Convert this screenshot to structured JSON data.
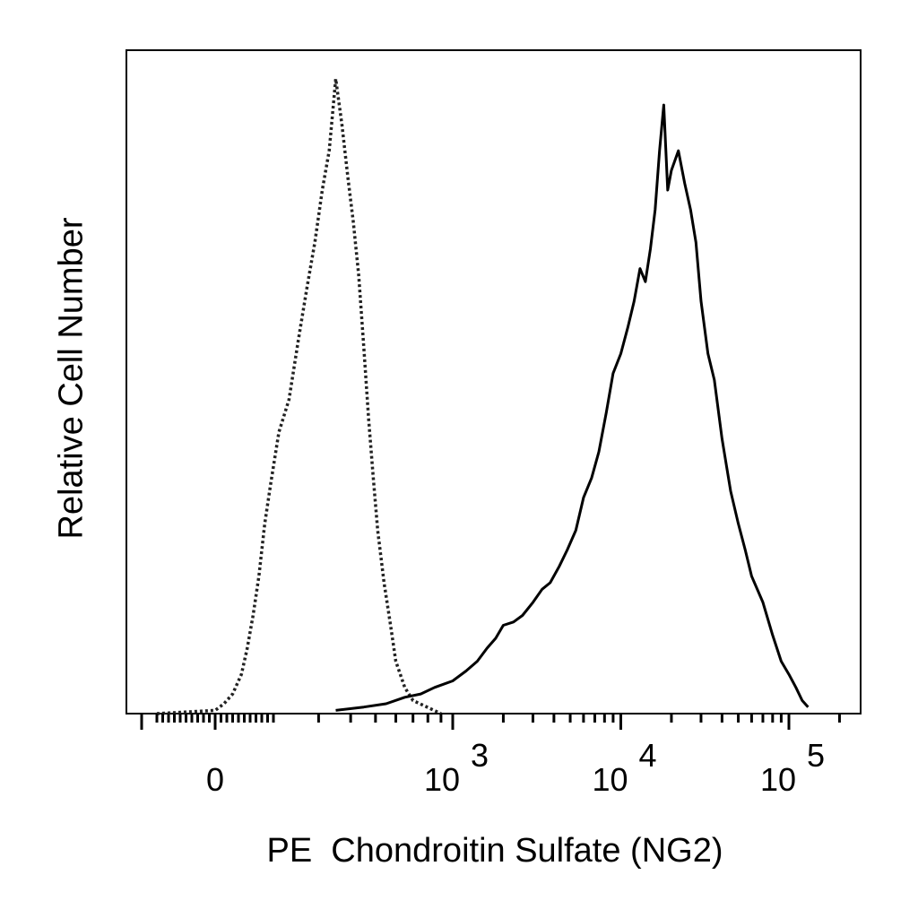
{
  "chart_data": {
    "type": "line",
    "title": "",
    "xlabel": "PE  Chondroitin Sulfate (NG2)",
    "ylabel": "Relative Cell Number",
    "x_scale": "biexponential",
    "x_ticks": [
      {
        "value": 0,
        "label": "0"
      },
      {
        "value": 1000,
        "label": "10",
        "exp": "3"
      },
      {
        "value": 10000,
        "label": "10",
        "exp": "4"
      },
      {
        "value": 100000,
        "label": "10",
        "exp": "5"
      }
    ],
    "xlim": [
      -200,
      150000
    ],
    "ylim": [
      0,
      100
    ],
    "grid": false,
    "legend": "none",
    "series": [
      {
        "style": "dotted",
        "color": "#222222",
        "x": [
          -200,
          0,
          30,
          60,
          90,
          110,
          130,
          150,
          170,
          190,
          210,
          230,
          250,
          270,
          290,
          310,
          330,
          350,
          370,
          390,
          410,
          430,
          450,
          470,
          490,
          510,
          540,
          570,
          600,
          650,
          700,
          900
        ],
        "y": [
          0,
          0.5,
          1.5,
          3,
          6,
          10,
          15,
          21,
          29,
          35,
          43,
          48,
          57,
          65,
          72,
          80,
          86,
          97,
          90,
          82,
          75,
          67,
          56,
          45,
          36,
          28,
          20,
          14,
          8,
          4,
          2,
          0
        ]
      },
      {
        "style": "solid",
        "color": "#000000",
        "x": [
          350,
          450,
          550,
          650,
          750,
          850,
          1000,
          1200,
          1400,
          1600,
          1800,
          2000,
          2300,
          2600,
          3000,
          3400,
          3800,
          4300,
          4800,
          5400,
          6000,
          6700,
          7400,
          8200,
          9000,
          10000,
          11000,
          12000,
          13000,
          14000,
          15000,
          16000,
          17000,
          18000,
          19000,
          20000,
          22000,
          24000,
          26000,
          28000,
          30000,
          33000,
          36000,
          40000,
          45000,
          50000,
          55000,
          60000,
          70000,
          80000,
          90000,
          100000,
          110000,
          120000,
          130000
        ],
        "y": [
          0.5,
          1,
          1.5,
          2.5,
          3,
          4,
          5,
          6.5,
          8,
          10,
          11.5,
          13.5,
          14,
          15,
          17,
          19,
          20,
          22.5,
          25,
          28,
          33,
          36,
          40,
          46,
          52,
          55,
          59,
          63,
          68,
          66,
          71,
          77,
          86,
          93,
          80,
          83,
          86,
          81,
          77,
          72,
          63,
          55,
          51,
          42,
          34,
          29,
          25,
          21,
          17,
          12,
          8,
          6,
          4,
          2,
          1
        ]
      }
    ]
  }
}
